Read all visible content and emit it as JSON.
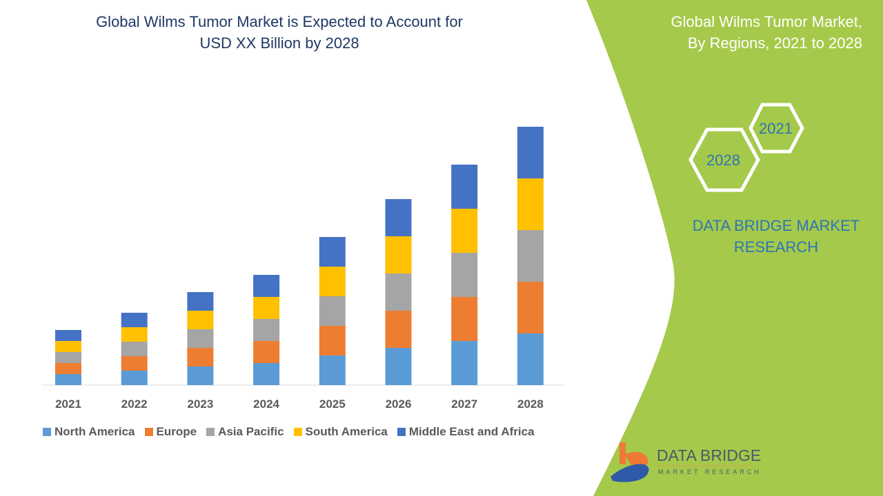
{
  "title_lines": [
    "Global Wilms Tumor Market is Expected to Account for",
    "USD XX Billion by 2028"
  ],
  "side_panel": {
    "title_lines": [
      "Global Wilms Tumor Market,",
      "By Regions, 2021 to 2028"
    ],
    "hex_years": [
      "2021",
      "2028"
    ],
    "brand_lines": [
      "DATA BRIDGE MARKET",
      "RESEARCH"
    ],
    "logo_text": "DATA BRIDGE",
    "logo_subtext": "MARKET RESEARCH",
    "color": "#a5c94a"
  },
  "chart_data": {
    "type": "bar",
    "stacked": true,
    "categories": [
      "2021",
      "2022",
      "2023",
      "2024",
      "2025",
      "2026",
      "2027",
      "2028"
    ],
    "series": [
      {
        "name": "North America",
        "color": "#5b9bd5",
        "values": [
          16,
          21,
          27,
          32,
          43,
          54,
          64,
          75
        ]
      },
      {
        "name": "Europe",
        "color": "#ed7d31",
        "values": [
          16,
          21,
          27,
          32,
          43,
          54,
          64,
          75
        ]
      },
      {
        "name": "Asia Pacific",
        "color": "#a5a5a5",
        "values": [
          16,
          21,
          27,
          32,
          43,
          54,
          64,
          75
        ]
      },
      {
        "name": "South America",
        "color": "#ffc000",
        "values": [
          16,
          21,
          27,
          32,
          43,
          54,
          64,
          75
        ]
      },
      {
        "name": "Middle East and Africa",
        "color": "#4472c4",
        "values": [
          16,
          21,
          27,
          32,
          43,
          54,
          64,
          75
        ]
      }
    ],
    "ylim": [
      0,
      380
    ],
    "grid": false,
    "legend_placement": "bottom"
  }
}
